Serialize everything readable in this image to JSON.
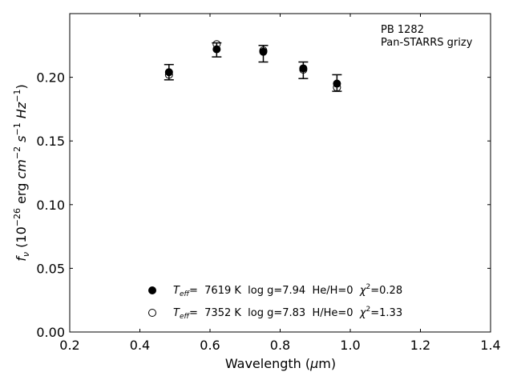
{
  "chart_data": {
    "type": "scatter",
    "title": "",
    "xlabel": "Wavelength (μm)",
    "ylabel": "fν (10⁻²⁶ erg cm⁻² s⁻¹ Hz⁻¹)",
    "xlim": [
      0.2,
      1.4
    ],
    "ylim": [
      0.0,
      0.25
    ],
    "xticks": [
      "0.2",
      "0.4",
      "0.6",
      "0.8",
      "1.0",
      "1.2",
      "1.4"
    ],
    "yticks": [
      "0.00",
      "0.05",
      "0.10",
      "0.15",
      "0.20"
    ],
    "annotation": [
      "PB 1282",
      "Pan-STARRS grizy"
    ],
    "observed": {
      "x": [
        0.483,
        0.619,
        0.752,
        0.866,
        0.962
      ],
      "y": [
        0.204,
        0.2215,
        0.2185,
        0.2055,
        0.1955
      ],
      "yerr": [
        0.006,
        0.0055,
        0.0065,
        0.0065,
        0.0065
      ]
    },
    "series": [
      {
        "name": "T_eff=  7619 K  log g=7.94  He/H=0  χ²=0.28",
        "marker": "filled-circle",
        "x": [
          0.483,
          0.619,
          0.752,
          0.866,
          0.962
        ],
        "y": [
          0.204,
          0.222,
          0.22,
          0.207,
          0.195
        ]
      },
      {
        "name": "T_eff=  7352 K  log g=7.83  H/He=0  χ²=1.33",
        "marker": "open-circle",
        "x": [
          0.483,
          0.619,
          0.752,
          0.866,
          0.962
        ],
        "y": [
          0.202,
          0.226,
          0.221,
          0.206,
          0.192
        ]
      }
    ],
    "legend": {
      "placement": "bottom-center",
      "entries": [
        {
          "T": "T",
          "sub": "eff",
          "text": "=  7619 K  log g=7.94  He/H=0  ",
          "chi": "χ",
          "sup": "2",
          "tail": "=0.28"
        },
        {
          "T": "T",
          "sub": "eff",
          "text": "=  7352 K  log g=7.83  H/He=0  ",
          "chi": "χ",
          "sup": "2",
          "tail": "=1.33"
        }
      ]
    },
    "xlabel_parts": {
      "pre": "Wavelength (",
      "mu": "μ",
      "post": "m)"
    },
    "ylabel_parts": {
      "f": "f",
      "nu": "ν",
      "open": " (10",
      "e1": "−26",
      "erg": " erg ",
      "cm": "cm",
      "e2": "−2",
      "s": " s",
      "e3": "−1",
      "hz": " Hz",
      "e4": "−1",
      "close": ")"
    },
    "grid": false,
    "colors": {
      "marker": "#000000",
      "axes": "#000000",
      "background": "#ffffff"
    }
  }
}
